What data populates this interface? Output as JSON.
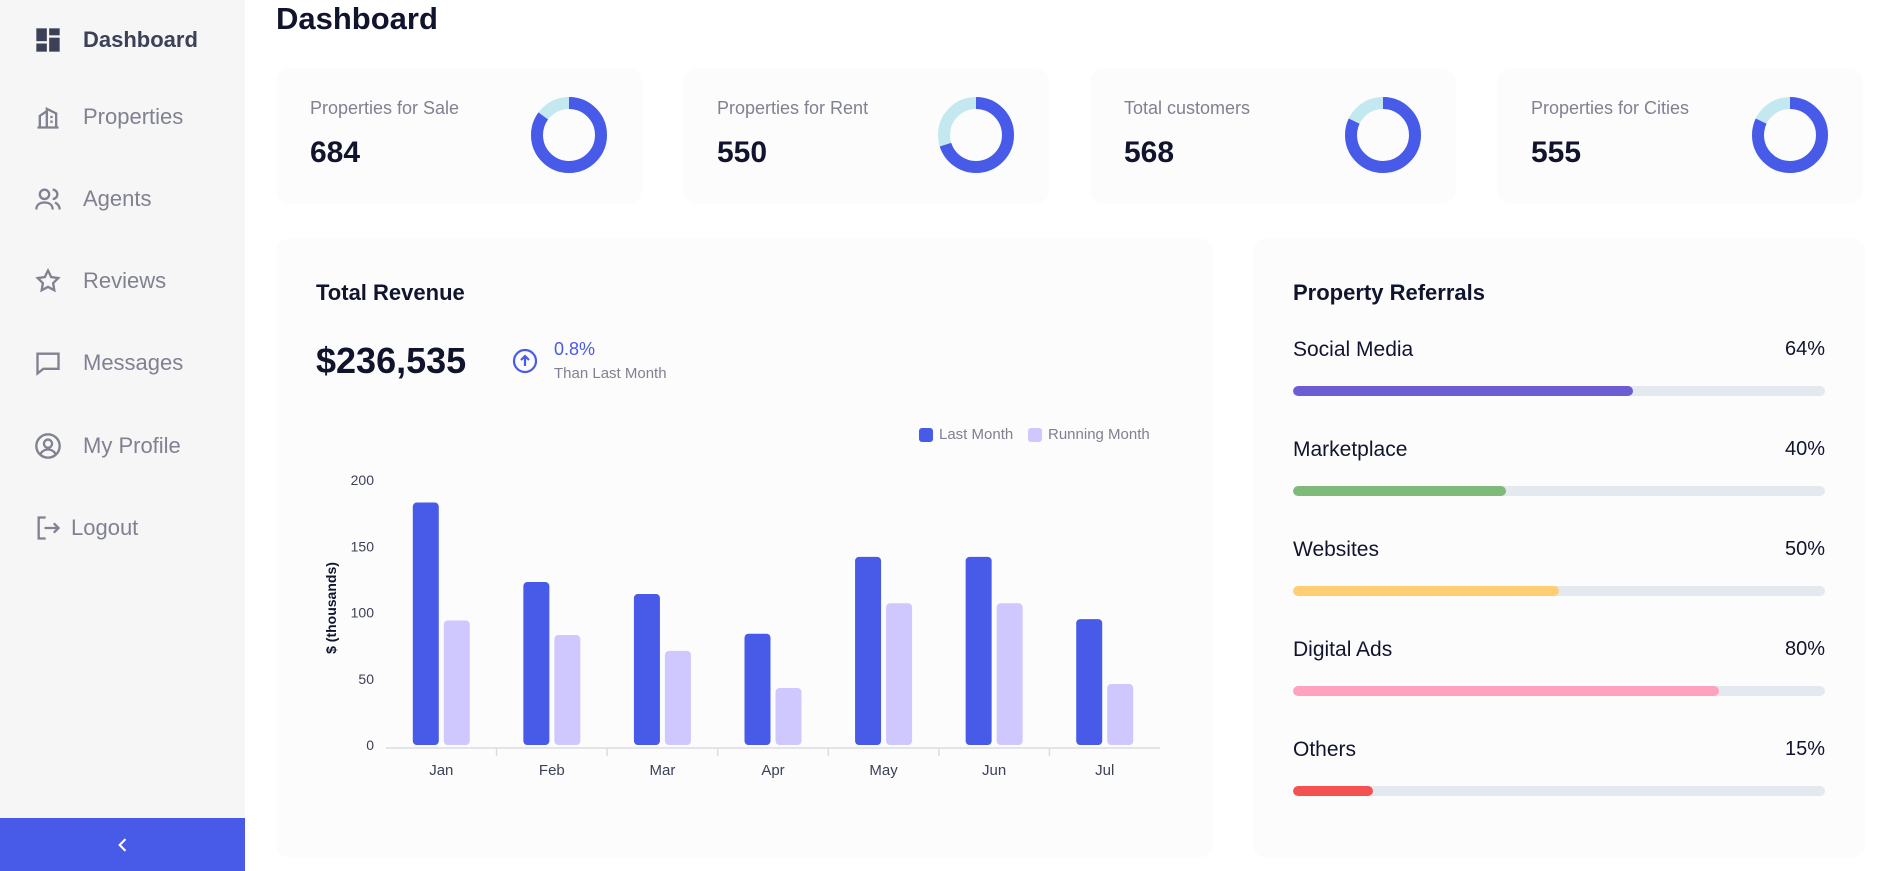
{
  "sidebar": {
    "items": [
      {
        "label": "Dashboard",
        "icon": "dashboard-icon"
      },
      {
        "label": "Properties",
        "icon": "building-icon"
      },
      {
        "label": "Agents",
        "icon": "people-icon"
      },
      {
        "label": "Reviews",
        "icon": "star-icon"
      },
      {
        "label": "Messages",
        "icon": "chat-icon"
      },
      {
        "label": "My Profile",
        "icon": "user-circle-icon"
      },
      {
        "label": "Logout",
        "icon": "logout-icon"
      }
    ],
    "collapse_icon": "chevron-left-icon"
  },
  "header": {
    "title": "Dashboard"
  },
  "stats": [
    {
      "label": "Properties for Sale",
      "value": "684",
      "progress": 0.85
    },
    {
      "label": "Properties for Rent",
      "value": "550",
      "progress": 0.7
    },
    {
      "label": "Total customers",
      "value": "568",
      "progress": 0.82
    },
    {
      "label": "Properties for Cities",
      "value": "555",
      "progress": 0.82
    }
  ],
  "revenue": {
    "title": "Total Revenue",
    "amount": "$236,535",
    "trend_pct": "0.8%",
    "trend_note": "Than Last Month",
    "trend_icon": "arrow-up-circle-icon"
  },
  "chart_data": {
    "type": "bar",
    "categories": [
      "Jan",
      "Feb",
      "Mar",
      "Apr",
      "May",
      "Jun",
      "Jul"
    ],
    "series": [
      {
        "name": "Last Month",
        "values": [
          183,
          123,
          114,
          84,
          142,
          142,
          95
        ],
        "color": "#475be8"
      },
      {
        "name": "Running Month",
        "values": [
          94,
          83,
          71,
          43,
          107,
          107,
          46
        ],
        "color": "#cfc8ff"
      }
    ],
    "ylabel": "$ (thousands)",
    "ylim": [
      0,
      200
    ],
    "yticks": [
      "0",
      "50",
      "100",
      "150",
      "200"
    ],
    "legend": "top-right"
  },
  "referrals": {
    "title": "Property Referrals",
    "items": [
      {
        "label": "Social Media",
        "value": "64%",
        "fraction": 0.64,
        "color": "#6c5dd3"
      },
      {
        "label": "Marketplace",
        "value": "40%",
        "fraction": 0.4,
        "color": "#7fba7a"
      },
      {
        "label": "Websites",
        "value": "50%",
        "fraction": 0.5,
        "color": "#ffce73"
      },
      {
        "label": "Digital Ads",
        "value": "80%",
        "fraction": 0.8,
        "color": "#ffa2c0"
      },
      {
        "label": "Others",
        "value": "15%",
        "fraction": 0.15,
        "color": "#f45252"
      }
    ]
  },
  "colors": {
    "accent": "#475be8",
    "donut_track": "#c4e8ef"
  }
}
